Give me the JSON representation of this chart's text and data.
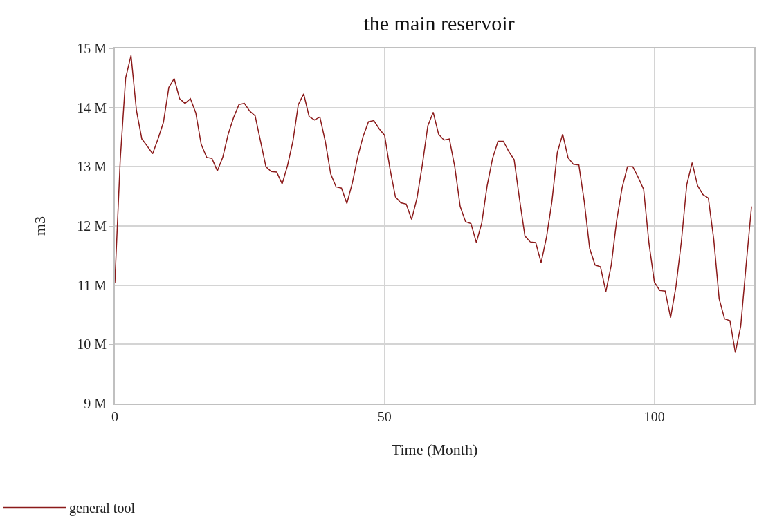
{
  "chart_data": {
    "type": "line",
    "title": "the main reservoir",
    "xlabel": "Time (Month)",
    "ylabel": "m3",
    "x": [
      0,
      1,
      2,
      3,
      4,
      5,
      6,
      7,
      8,
      9,
      10,
      11,
      12,
      13,
      14,
      15,
      16,
      17,
      18,
      19,
      20,
      21,
      22,
      23,
      24,
      25,
      26,
      27,
      28,
      29,
      30,
      31,
      32,
      33,
      34,
      35,
      36,
      37,
      38,
      39,
      40,
      41,
      42,
      43,
      44,
      45,
      46,
      47,
      48,
      49,
      50,
      51,
      52,
      53,
      54,
      55,
      56,
      57,
      58,
      59,
      60,
      61,
      62,
      63,
      64,
      65,
      66,
      67,
      68,
      69,
      70,
      71,
      72,
      73,
      74,
      75,
      76,
      77,
      78,
      79,
      80,
      81,
      82,
      83,
      84,
      85,
      86,
      87,
      88,
      89,
      90,
      91,
      92,
      93,
      94,
      95,
      96,
      97,
      98,
      99,
      100,
      101,
      102,
      103,
      104,
      105,
      106,
      107,
      108,
      109,
      110,
      111,
      112,
      113,
      114,
      115,
      116,
      117,
      118
    ],
    "series": [
      {
        "name": "general tool",
        "color": "#8b1a1a",
        "values": [
          11.04,
          13.12,
          14.5,
          14.88,
          13.95,
          13.47,
          13.35,
          13.22,
          13.47,
          13.75,
          14.34,
          14.49,
          14.15,
          14.07,
          14.15,
          13.91,
          13.38,
          13.16,
          13.14,
          12.93,
          13.16,
          13.55,
          13.83,
          14.05,
          14.07,
          13.94,
          13.86,
          13.43,
          13.0,
          12.92,
          12.91,
          12.71,
          13.02,
          13.43,
          14.05,
          14.23,
          13.85,
          13.79,
          13.84,
          13.43,
          12.88,
          12.66,
          12.64,
          12.38,
          12.72,
          13.16,
          13.51,
          13.76,
          13.78,
          13.64,
          13.53,
          12.96,
          12.49,
          12.39,
          12.37,
          12.11,
          12.47,
          13.04,
          13.69,
          13.92,
          13.55,
          13.45,
          13.47,
          13.0,
          12.33,
          12.07,
          12.04,
          11.72,
          12.05,
          12.68,
          13.14,
          13.43,
          13.43,
          13.26,
          13.12,
          12.45,
          11.83,
          11.73,
          11.72,
          11.38,
          11.81,
          12.41,
          13.24,
          13.55,
          13.15,
          13.04,
          13.03,
          12.41,
          11.62,
          11.34,
          11.31,
          10.89,
          11.34,
          12.09,
          12.64,
          13.0,
          13.0,
          12.82,
          12.62,
          11.7,
          11.05,
          10.91,
          10.9,
          10.45,
          10.98,
          11.74,
          12.7,
          13.07,
          12.68,
          12.53,
          12.47,
          11.77,
          10.77,
          10.43,
          10.4,
          9.86,
          10.31,
          11.34,
          12.33
        ]
      }
    ],
    "xlim": [
      0,
      118.5
    ],
    "xticks": [
      0,
      50,
      100
    ],
    "ylim": [
      9,
      15
    ],
    "yticks": [
      {
        "value": 9,
        "label": "9 M"
      },
      {
        "value": 10,
        "label": "10 M"
      },
      {
        "value": 11,
        "label": "11 M"
      },
      {
        "value": 12,
        "label": "12 M"
      },
      {
        "value": 13,
        "label": "13 M"
      },
      {
        "value": 14,
        "label": "14 M"
      },
      {
        "value": 15,
        "label": "15 M"
      }
    ],
    "grid": true,
    "legend": "bottom left",
    "line_style": "solid"
  }
}
